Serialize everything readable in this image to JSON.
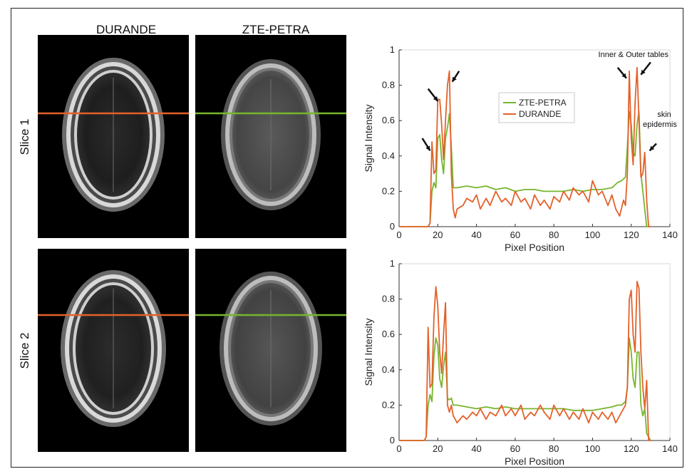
{
  "columns": {
    "left": "DURANDE",
    "right": "ZTE-PETRA"
  },
  "rows": [
    {
      "label": "Slice 1"
    },
    {
      "label": "Slice 2"
    }
  ],
  "colors": {
    "durande": "#e3612a",
    "zte": "#77b52e",
    "axis": "#333333"
  },
  "annotations": {
    "inner_outer": "Inner & Outer tables",
    "skin_line1": "skin",
    "skin_line2": "epidermis"
  },
  "chart_data": [
    {
      "type": "line",
      "title": "",
      "xlabel": "Pixel Position",
      "ylabel": "Signal Intensity",
      "xlim": [
        0,
        140
      ],
      "ylim": [
        0,
        1
      ],
      "xticks": [
        0,
        20,
        40,
        60,
        80,
        100,
        120,
        140
      ],
      "yticks": [
        0,
        0.2,
        0.4,
        0.6,
        0.8,
        1
      ],
      "grid": false,
      "legend": "center-left",
      "series": [
        {
          "name": "ZTE-PETRA",
          "color": "#77b52e",
          "x": [
            0,
            10,
            15,
            16,
            17,
            18,
            19,
            20,
            21,
            22,
            23,
            24,
            25,
            26,
            27,
            28,
            30,
            35,
            40,
            45,
            50,
            55,
            60,
            65,
            70,
            75,
            80,
            85,
            90,
            95,
            100,
            105,
            110,
            113,
            115,
            117,
            118,
            119,
            120,
            121,
            122,
            123,
            124,
            125,
            126,
            127,
            128,
            130
          ],
          "y": [
            0,
            0,
            0,
            0.02,
            0.2,
            0.25,
            0.22,
            0.5,
            0.52,
            0.38,
            0.3,
            0.5,
            0.56,
            0.64,
            0.45,
            0.22,
            0.22,
            0.23,
            0.22,
            0.23,
            0.21,
            0.22,
            0.2,
            0.21,
            0.21,
            0.2,
            0.2,
            0.2,
            0.21,
            0.2,
            0.21,
            0.21,
            0.22,
            0.25,
            0.26,
            0.28,
            0.45,
            0.65,
            0.58,
            0.42,
            0.4,
            0.58,
            0.65,
            0.3,
            0.2,
            0.1,
            0,
            0
          ]
        },
        {
          "name": "DURANDE",
          "color": "#e3612a",
          "x": [
            0,
            10,
            15,
            16,
            17,
            18,
            19,
            20,
            21,
            22,
            23,
            24,
            25,
            26,
            27,
            28,
            29,
            30,
            33,
            35,
            38,
            40,
            42,
            45,
            47,
            50,
            53,
            55,
            58,
            60,
            63,
            65,
            68,
            70,
            73,
            75,
            78,
            80,
            83,
            85,
            88,
            90,
            93,
            95,
            98,
            100,
            103,
            105,
            108,
            110,
            112,
            114,
            116,
            117,
            118,
            119,
            120,
            121,
            122,
            123,
            124,
            125,
            126,
            127,
            128,
            129,
            130
          ],
          "y": [
            0,
            0,
            0,
            0.02,
            0.48,
            0.3,
            0.32,
            0.72,
            0.72,
            0.58,
            0.38,
            0.6,
            0.8,
            0.88,
            0.3,
            0.1,
            0.05,
            0.1,
            0.12,
            0.16,
            0.14,
            0.18,
            0.1,
            0.16,
            0.12,
            0.2,
            0.14,
            0.16,
            0.12,
            0.2,
            0.14,
            0.16,
            0.1,
            0.18,
            0.12,
            0.15,
            0.1,
            0.17,
            0.14,
            0.2,
            0.15,
            0.22,
            0.18,
            0.2,
            0.14,
            0.26,
            0.18,
            0.2,
            0.12,
            0.18,
            0.1,
            0.06,
            0.15,
            0.12,
            0.3,
            0.88,
            0.5,
            0.35,
            0.7,
            0.9,
            0.6,
            0.28,
            0.3,
            0.42,
            0.15,
            0,
            0
          ]
        }
      ]
    },
    {
      "type": "line",
      "title": "",
      "xlabel": "Pixel Position",
      "ylabel": "Signal Intensity",
      "xlim": [
        0,
        140
      ],
      "ylim": [
        0,
        1
      ],
      "xticks": [
        0,
        20,
        40,
        60,
        80,
        100,
        120,
        140
      ],
      "yticks": [
        0,
        0.2,
        0.4,
        0.6,
        0.8,
        1
      ],
      "grid": false,
      "legend": "none",
      "series": [
        {
          "name": "ZTE-PETRA",
          "color": "#77b52e",
          "x": [
            0,
            10,
            13,
            14,
            15,
            16,
            17,
            18,
            19,
            20,
            21,
            22,
            23,
            24,
            25,
            26,
            27,
            28,
            30,
            35,
            40,
            45,
            50,
            55,
            60,
            65,
            70,
            75,
            80,
            85,
            90,
            95,
            100,
            105,
            110,
            113,
            115,
            117,
            118,
            119,
            120,
            121,
            122,
            123,
            124,
            125,
            126,
            127,
            128,
            130
          ],
          "y": [
            0,
            0,
            0,
            0.02,
            0.2,
            0.26,
            0.22,
            0.48,
            0.58,
            0.54,
            0.35,
            0.3,
            0.42,
            0.5,
            0.24,
            0.23,
            0.24,
            0.2,
            0.2,
            0.19,
            0.18,
            0.19,
            0.18,
            0.19,
            0.18,
            0.18,
            0.18,
            0.18,
            0.18,
            0.18,
            0.17,
            0.17,
            0.17,
            0.18,
            0.19,
            0.2,
            0.2,
            0.22,
            0.3,
            0.58,
            0.5,
            0.35,
            0.3,
            0.5,
            0.5,
            0.2,
            0.14,
            0.18,
            0.04,
            0
          ]
        },
        {
          "name": "DURANDE",
          "color": "#e3612a",
          "x": [
            0,
            10,
            13,
            14,
            15,
            16,
            17,
            18,
            19,
            20,
            21,
            22,
            23,
            24,
            25,
            26,
            27,
            28,
            30,
            33,
            35,
            38,
            40,
            42,
            45,
            47,
            50,
            53,
            55,
            58,
            60,
            63,
            65,
            68,
            70,
            73,
            75,
            78,
            80,
            83,
            85,
            88,
            90,
            93,
            95,
            98,
            100,
            103,
            105,
            108,
            110,
            112,
            114,
            116,
            117,
            118,
            119,
            120,
            121,
            122,
            123,
            124,
            125,
            126,
            127,
            128,
            129,
            130
          ],
          "y": [
            0,
            0,
            0,
            0.02,
            0.64,
            0.3,
            0.32,
            0.7,
            0.87,
            0.76,
            0.5,
            0.38,
            0.6,
            0.78,
            0.2,
            0.16,
            0.2,
            0.14,
            0.1,
            0.14,
            0.12,
            0.16,
            0.14,
            0.18,
            0.12,
            0.16,
            0.14,
            0.2,
            0.14,
            0.18,
            0.14,
            0.2,
            0.12,
            0.16,
            0.14,
            0.2,
            0.16,
            0.12,
            0.2,
            0.14,
            0.18,
            0.12,
            0.16,
            0.12,
            0.18,
            0.1,
            0.16,
            0.12,
            0.16,
            0.12,
            0.16,
            0.1,
            0.14,
            0.18,
            0.2,
            0.3,
            0.8,
            0.85,
            0.6,
            0.5,
            0.9,
            0.86,
            0.5,
            0.3,
            0.18,
            0.34,
            0,
            0
          ]
        }
      ]
    }
  ]
}
